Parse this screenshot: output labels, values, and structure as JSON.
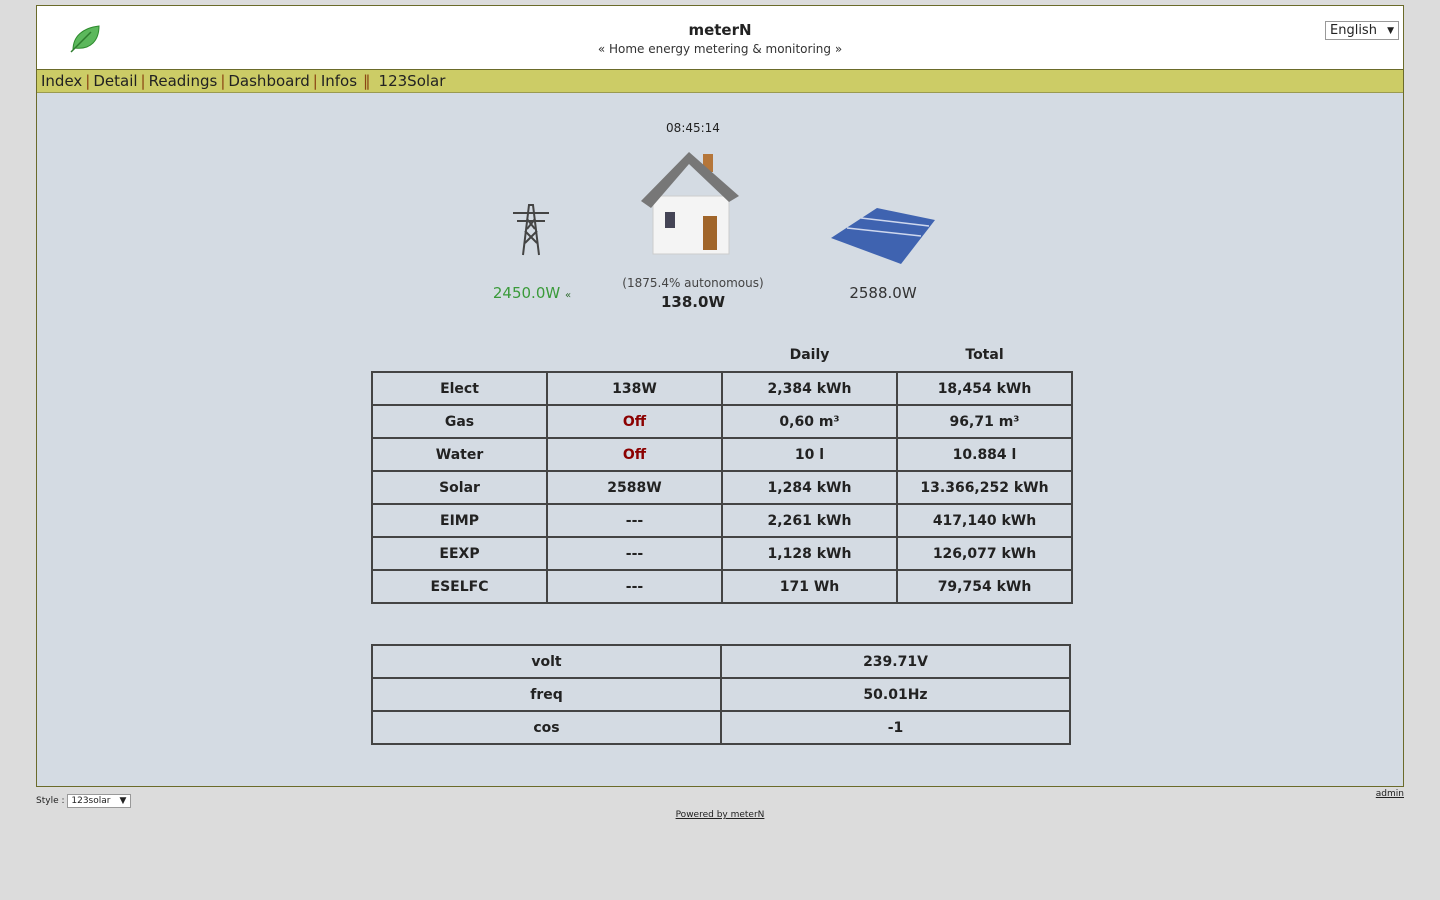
{
  "header": {
    "title": "meterN",
    "subtitle": "« Home energy metering & monitoring »",
    "language": "English"
  },
  "nav": [
    {
      "label": "Index"
    },
    {
      "label": "Detail"
    },
    {
      "label": "Readings"
    },
    {
      "label": "Dashboard"
    },
    {
      "label": "Infos"
    },
    {
      "label": "123Solar"
    }
  ],
  "overview": {
    "time": "08:45:14",
    "grid": "2450.0W",
    "house_autonomy": "(1875.4% autonomous)",
    "house": "138.0W",
    "solar": "2588.0W"
  },
  "meters": {
    "headers": [
      "",
      "",
      "Daily",
      "Total"
    ],
    "rows": [
      [
        "Elect",
        "138W",
        "2,384 kWh",
        "18,454 kWh"
      ],
      [
        "Gas",
        "Off",
        "0,60 m³",
        "96,71 m³"
      ],
      [
        "Water",
        "Off",
        "10 l",
        "10.884 l"
      ],
      [
        "Solar",
        "2588W",
        "1,284 kWh",
        "13.366,252 kWh"
      ],
      [
        "EIMP",
        "---",
        "2,261 kWh",
        "417,140 kWh"
      ],
      [
        "EEXP",
        "---",
        "1,128 kWh",
        "126,077 kWh"
      ],
      [
        "ESELFC",
        "---",
        "171 Wh",
        "79,754 kWh"
      ]
    ]
  },
  "indicators": [
    [
      "volt",
      "239.71V"
    ],
    [
      "freq",
      "50.01Hz"
    ],
    [
      "cos",
      "-1"
    ]
  ],
  "footer": {
    "style_label": "Style :",
    "style_value": "123solar",
    "admin": "admin",
    "powered": "Powered by meterN"
  }
}
